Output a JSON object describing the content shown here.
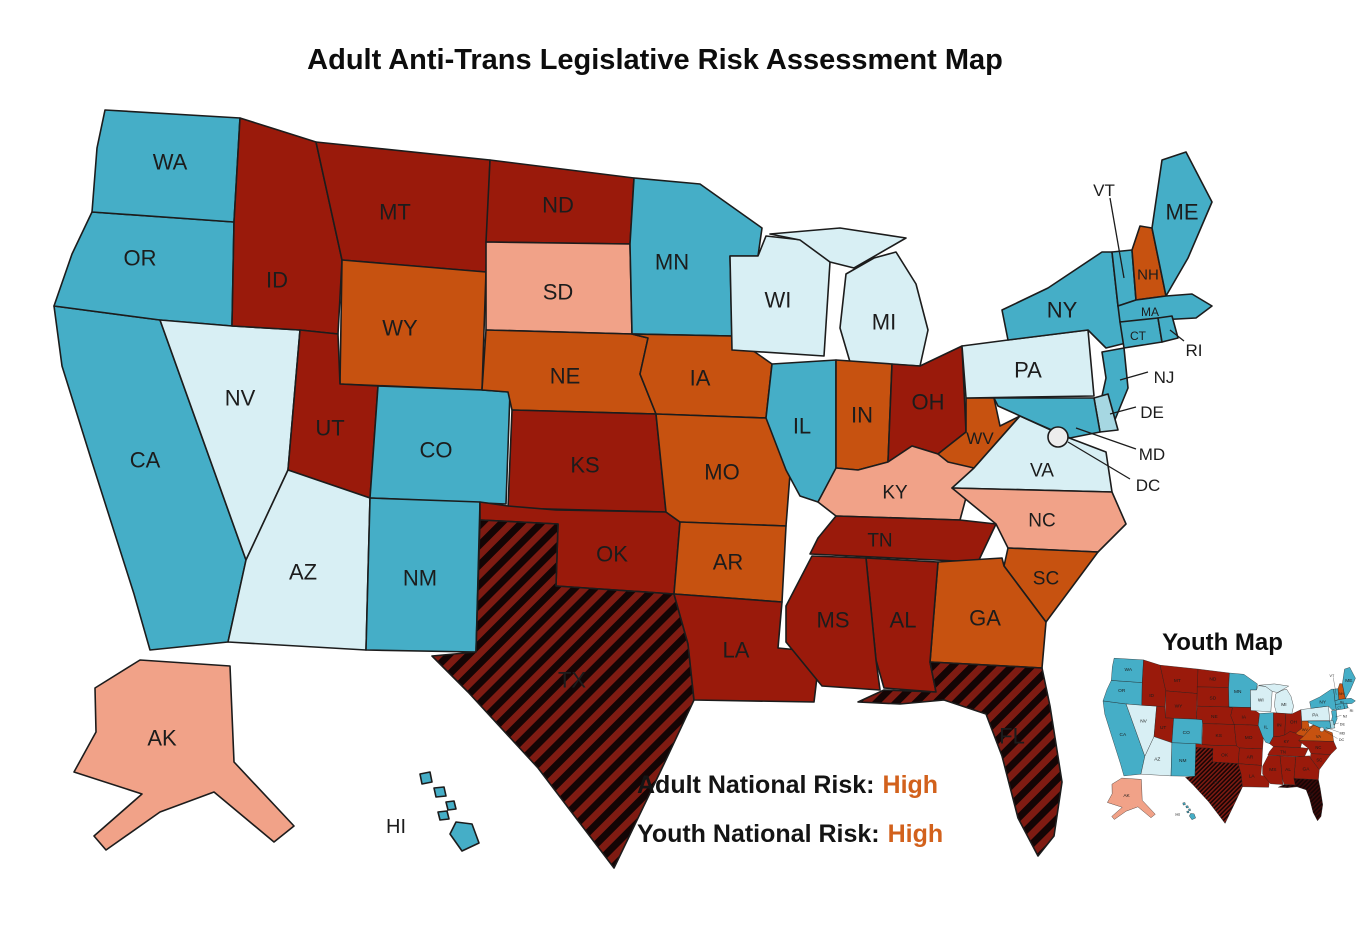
{
  "title": "Adult Anti-Trans Legislative Risk Assessment Map",
  "inset": {
    "title": "Youth Map"
  },
  "legend": {
    "adult_label": "Adult National Risk:",
    "adult_value": "High",
    "youth_label": "Youth National Risk:",
    "youth_value": "High",
    "value_color": "#D2611C"
  },
  "colors": {
    "worst": "#9A1A0B",
    "high": "#C75210",
    "moderate": "#F1A288",
    "low": "#A6D7E2",
    "lowest": "#D8EFF4",
    "safest": "#45AEC7",
    "dc": "#EDEDED",
    "stripe_black": "#140505",
    "stripe_red": "#7F1B12",
    "stripe_dark_red": "#3A0908",
    "border": "#1c1c1c"
  },
  "states": [
    {
      "abbr": "CA",
      "adult": "safest",
      "youth": "safest"
    },
    {
      "abbr": "OR",
      "adult": "safest",
      "youth": "safest"
    },
    {
      "abbr": "WA",
      "adult": "safest",
      "youth": "safest"
    },
    {
      "abbr": "NV",
      "adult": "lowest",
      "youth": "lowest"
    },
    {
      "abbr": "ID",
      "adult": "worst",
      "youth": "worst"
    },
    {
      "abbr": "MT",
      "adult": "worst",
      "youth": "worst"
    },
    {
      "abbr": "WY",
      "adult": "high",
      "youth": "worst"
    },
    {
      "abbr": "UT",
      "adult": "worst",
      "youth": "worst"
    },
    {
      "abbr": "CO",
      "adult": "safest",
      "youth": "safest"
    },
    {
      "abbr": "AZ",
      "adult": "lowest",
      "youth": "lowest"
    },
    {
      "abbr": "NM",
      "adult": "safest",
      "youth": "safest"
    },
    {
      "abbr": "ND",
      "adult": "worst",
      "youth": "worst"
    },
    {
      "abbr": "SD",
      "adult": "moderate",
      "youth": "worst"
    },
    {
      "abbr": "NE",
      "adult": "high",
      "youth": "worst"
    },
    {
      "abbr": "KS",
      "adult": "worst",
      "youth": "worst"
    },
    {
      "abbr": "OK",
      "adult": "worst",
      "youth": "worst"
    },
    {
      "abbr": "TX",
      "adult": "striped",
      "youth": "striped"
    },
    {
      "abbr": "MN",
      "adult": "safest",
      "youth": "safest"
    },
    {
      "abbr": "IA",
      "adult": "high",
      "youth": "worst"
    },
    {
      "abbr": "MO",
      "adult": "high",
      "youth": "worst"
    },
    {
      "abbr": "AR",
      "adult": "high",
      "youth": "worst"
    },
    {
      "abbr": "LA",
      "adult": "worst",
      "youth": "worst"
    },
    {
      "abbr": "WI",
      "adult": "lowest",
      "youth": "lowest"
    },
    {
      "abbr": "IL",
      "adult": "safest",
      "youth": "safest"
    },
    {
      "abbr": "MI",
      "adult": "lowest",
      "youth": "lowest"
    },
    {
      "abbr": "IN",
      "adult": "high",
      "youth": "worst"
    },
    {
      "abbr": "OH",
      "adult": "worst",
      "youth": "worst"
    },
    {
      "abbr": "KY",
      "adult": "moderate",
      "youth": "worst"
    },
    {
      "abbr": "TN",
      "adult": "worst",
      "youth": "worst"
    },
    {
      "abbr": "WV",
      "adult": "high",
      "youth": "high"
    },
    {
      "abbr": "VA",
      "adult": "lowest",
      "youth": "high"
    },
    {
      "abbr": "NC",
      "adult": "moderate",
      "youth": "worst"
    },
    {
      "abbr": "SC",
      "adult": "high",
      "youth": "worst"
    },
    {
      "abbr": "GA",
      "adult": "high",
      "youth": "worst"
    },
    {
      "abbr": "AL",
      "adult": "worst",
      "youth": "worst"
    },
    {
      "abbr": "MS",
      "adult": "worst",
      "youth": "worst"
    },
    {
      "abbr": "FL",
      "adult": "striped",
      "youth": "striped_dark"
    },
    {
      "abbr": "PA",
      "adult": "lowest",
      "youth": "lowest"
    },
    {
      "abbr": "NY",
      "adult": "safest",
      "youth": "safest"
    },
    {
      "abbr": "VT",
      "adult": "safest",
      "youth": "safest"
    },
    {
      "abbr": "NH",
      "adult": "high",
      "youth": "high"
    },
    {
      "abbr": "ME",
      "adult": "safest",
      "youth": "safest"
    },
    {
      "abbr": "MA",
      "adult": "safest",
      "youth": "safest"
    },
    {
      "abbr": "CT",
      "adult": "safest",
      "youth": "safest"
    },
    {
      "abbr": "RI",
      "adult": "safest",
      "youth": "safest"
    },
    {
      "abbr": "NJ",
      "adult": "safest",
      "youth": "safest"
    },
    {
      "abbr": "DE",
      "adult": "low",
      "youth": "low"
    },
    {
      "abbr": "MD",
      "adult": "safest",
      "youth": "safest"
    },
    {
      "abbr": "DC",
      "adult": "dc",
      "youth": "dc"
    },
    {
      "abbr": "AK",
      "adult": "moderate",
      "youth": "moderate"
    },
    {
      "abbr": "HI",
      "adult": "safest",
      "youth": "safest"
    }
  ]
}
